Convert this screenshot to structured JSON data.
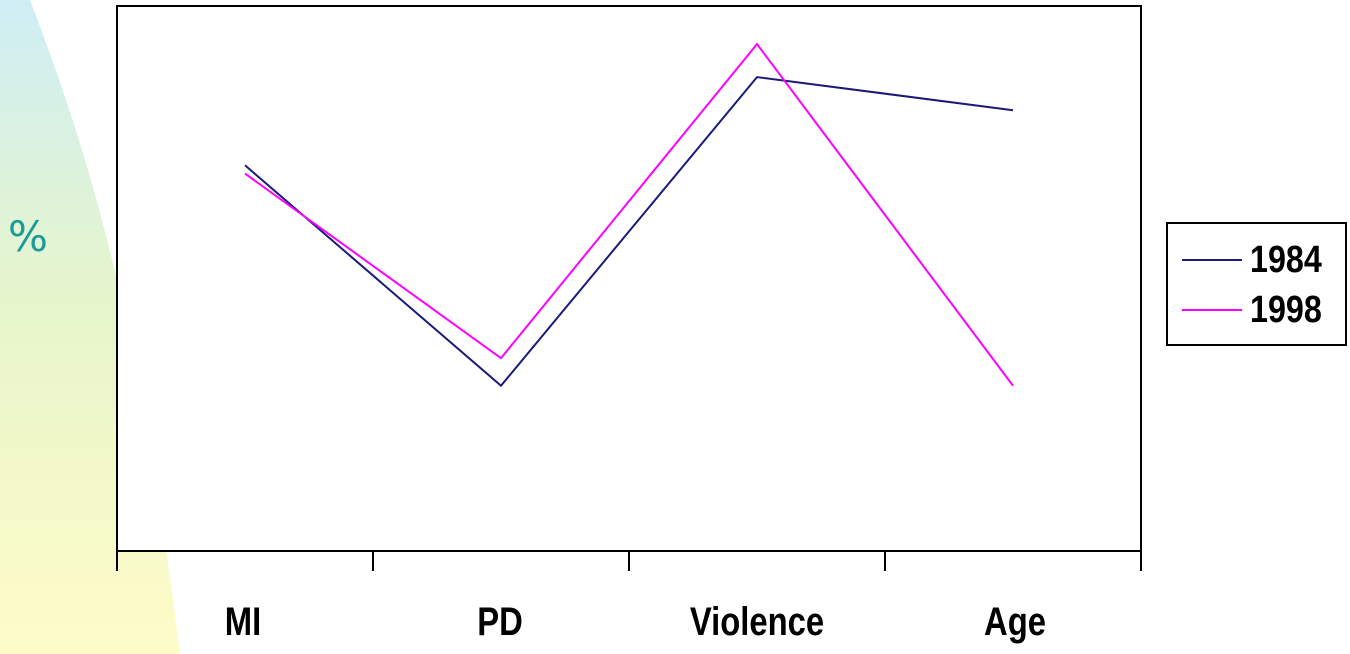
{
  "chart_data": {
    "type": "line",
    "ylabel": "%",
    "xlabel": "",
    "title": "",
    "categories": [
      "MI",
      "PD",
      "Violence",
      "Age"
    ],
    "ylim": [
      0,
      100
    ],
    "series": [
      {
        "name": "1984",
        "color": "#1a1a7a",
        "values": [
          70,
          30,
          86,
          80
        ]
      },
      {
        "name": "1998",
        "color": "#ff00ff",
        "values": [
          68.5,
          35,
          92,
          30
        ]
      }
    ],
    "legend_placement": "right",
    "grid": false
  }
}
